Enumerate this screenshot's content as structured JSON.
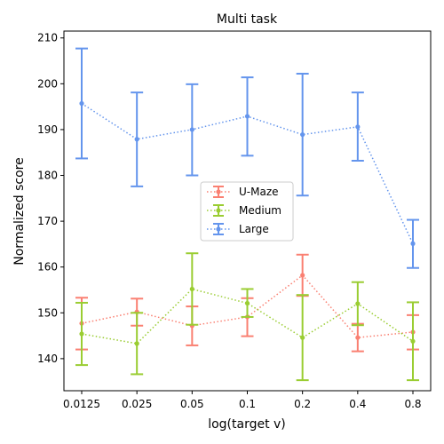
{
  "chart_data": {
    "type": "line",
    "title": "Multi task",
    "xlabel": "log(target v)",
    "ylabel": "Normalized score",
    "categories": [
      "0.0125",
      "0.025",
      "0.05",
      "0.1",
      "0.2",
      "0.4",
      "0.8"
    ],
    "ylim": [
      133,
      211.5
    ],
    "yticks": [
      140,
      150,
      160,
      170,
      180,
      190,
      200,
      210
    ],
    "grid": false,
    "legend_position": "center",
    "series": [
      {
        "name": "U-Maze",
        "color": "#FA8072",
        "values": [
          147.7,
          150.2,
          147.2,
          149.1,
          158.2,
          144.6,
          145.8
        ],
        "err_low": [
          142.0,
          147.2,
          142.9,
          144.9,
          153.7,
          141.6,
          142.0
        ],
        "err_high": [
          153.3,
          153.1,
          151.4,
          153.2,
          162.7,
          147.6,
          149.5
        ]
      },
      {
        "name": "Medium",
        "color": "#9ACD32",
        "values": [
          145.4,
          143.3,
          155.2,
          152.1,
          144.6,
          152.0,
          143.8
        ],
        "err_low": [
          138.6,
          136.6,
          147.4,
          149.1,
          135.3,
          147.3,
          135.3
        ],
        "err_high": [
          152.2,
          150.0,
          163.0,
          155.2,
          153.9,
          156.7,
          152.3
        ]
      },
      {
        "name": "Large",
        "color": "#6495ED",
        "values": [
          195.7,
          187.9,
          190.0,
          192.9,
          188.9,
          190.6,
          165.1
        ],
        "err_low": [
          183.7,
          177.6,
          180.0,
          184.3,
          175.6,
          183.2,
          159.8
        ],
        "err_high": [
          207.7,
          198.1,
          199.9,
          201.4,
          202.2,
          198.1,
          170.3
        ]
      }
    ]
  }
}
